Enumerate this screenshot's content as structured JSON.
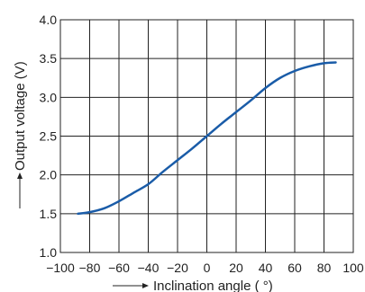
{
  "chart_data": {
    "type": "line",
    "xlabel": "Inclination angle ( °)",
    "ylabel": "Output voltage (V)",
    "xlim": [
      -100,
      100
    ],
    "ylim": [
      1.0,
      4.0
    ],
    "xticks": [
      -100,
      -80,
      -60,
      -40,
      -20,
      0,
      20,
      40,
      60,
      80,
      100
    ],
    "xtick_labels": [
      "−100",
      "−80",
      "−60",
      "−40",
      "−20",
      "0",
      "20",
      "40",
      "60",
      "80",
      "100"
    ],
    "yticks": [
      1.0,
      1.5,
      2.0,
      2.5,
      3.0,
      3.5,
      4.0
    ],
    "ytick_labels": [
      "1.0",
      "1.5",
      "2.0",
      "2.5",
      "3.0",
      "3.5",
      "4.0"
    ],
    "grid": true,
    "series": [
      {
        "color": "#1a5ca8",
        "x": [
          -88,
          -80,
          -70,
          -60,
          -50,
          -40,
          -30,
          -20,
          -10,
          0,
          10,
          20,
          30,
          40,
          50,
          60,
          70,
          80,
          88
        ],
        "y": [
          1.5,
          1.52,
          1.57,
          1.66,
          1.77,
          1.88,
          2.04,
          2.19,
          2.34,
          2.5,
          2.66,
          2.81,
          2.96,
          3.12,
          3.25,
          3.34,
          3.4,
          3.44,
          3.45
        ]
      }
    ]
  }
}
